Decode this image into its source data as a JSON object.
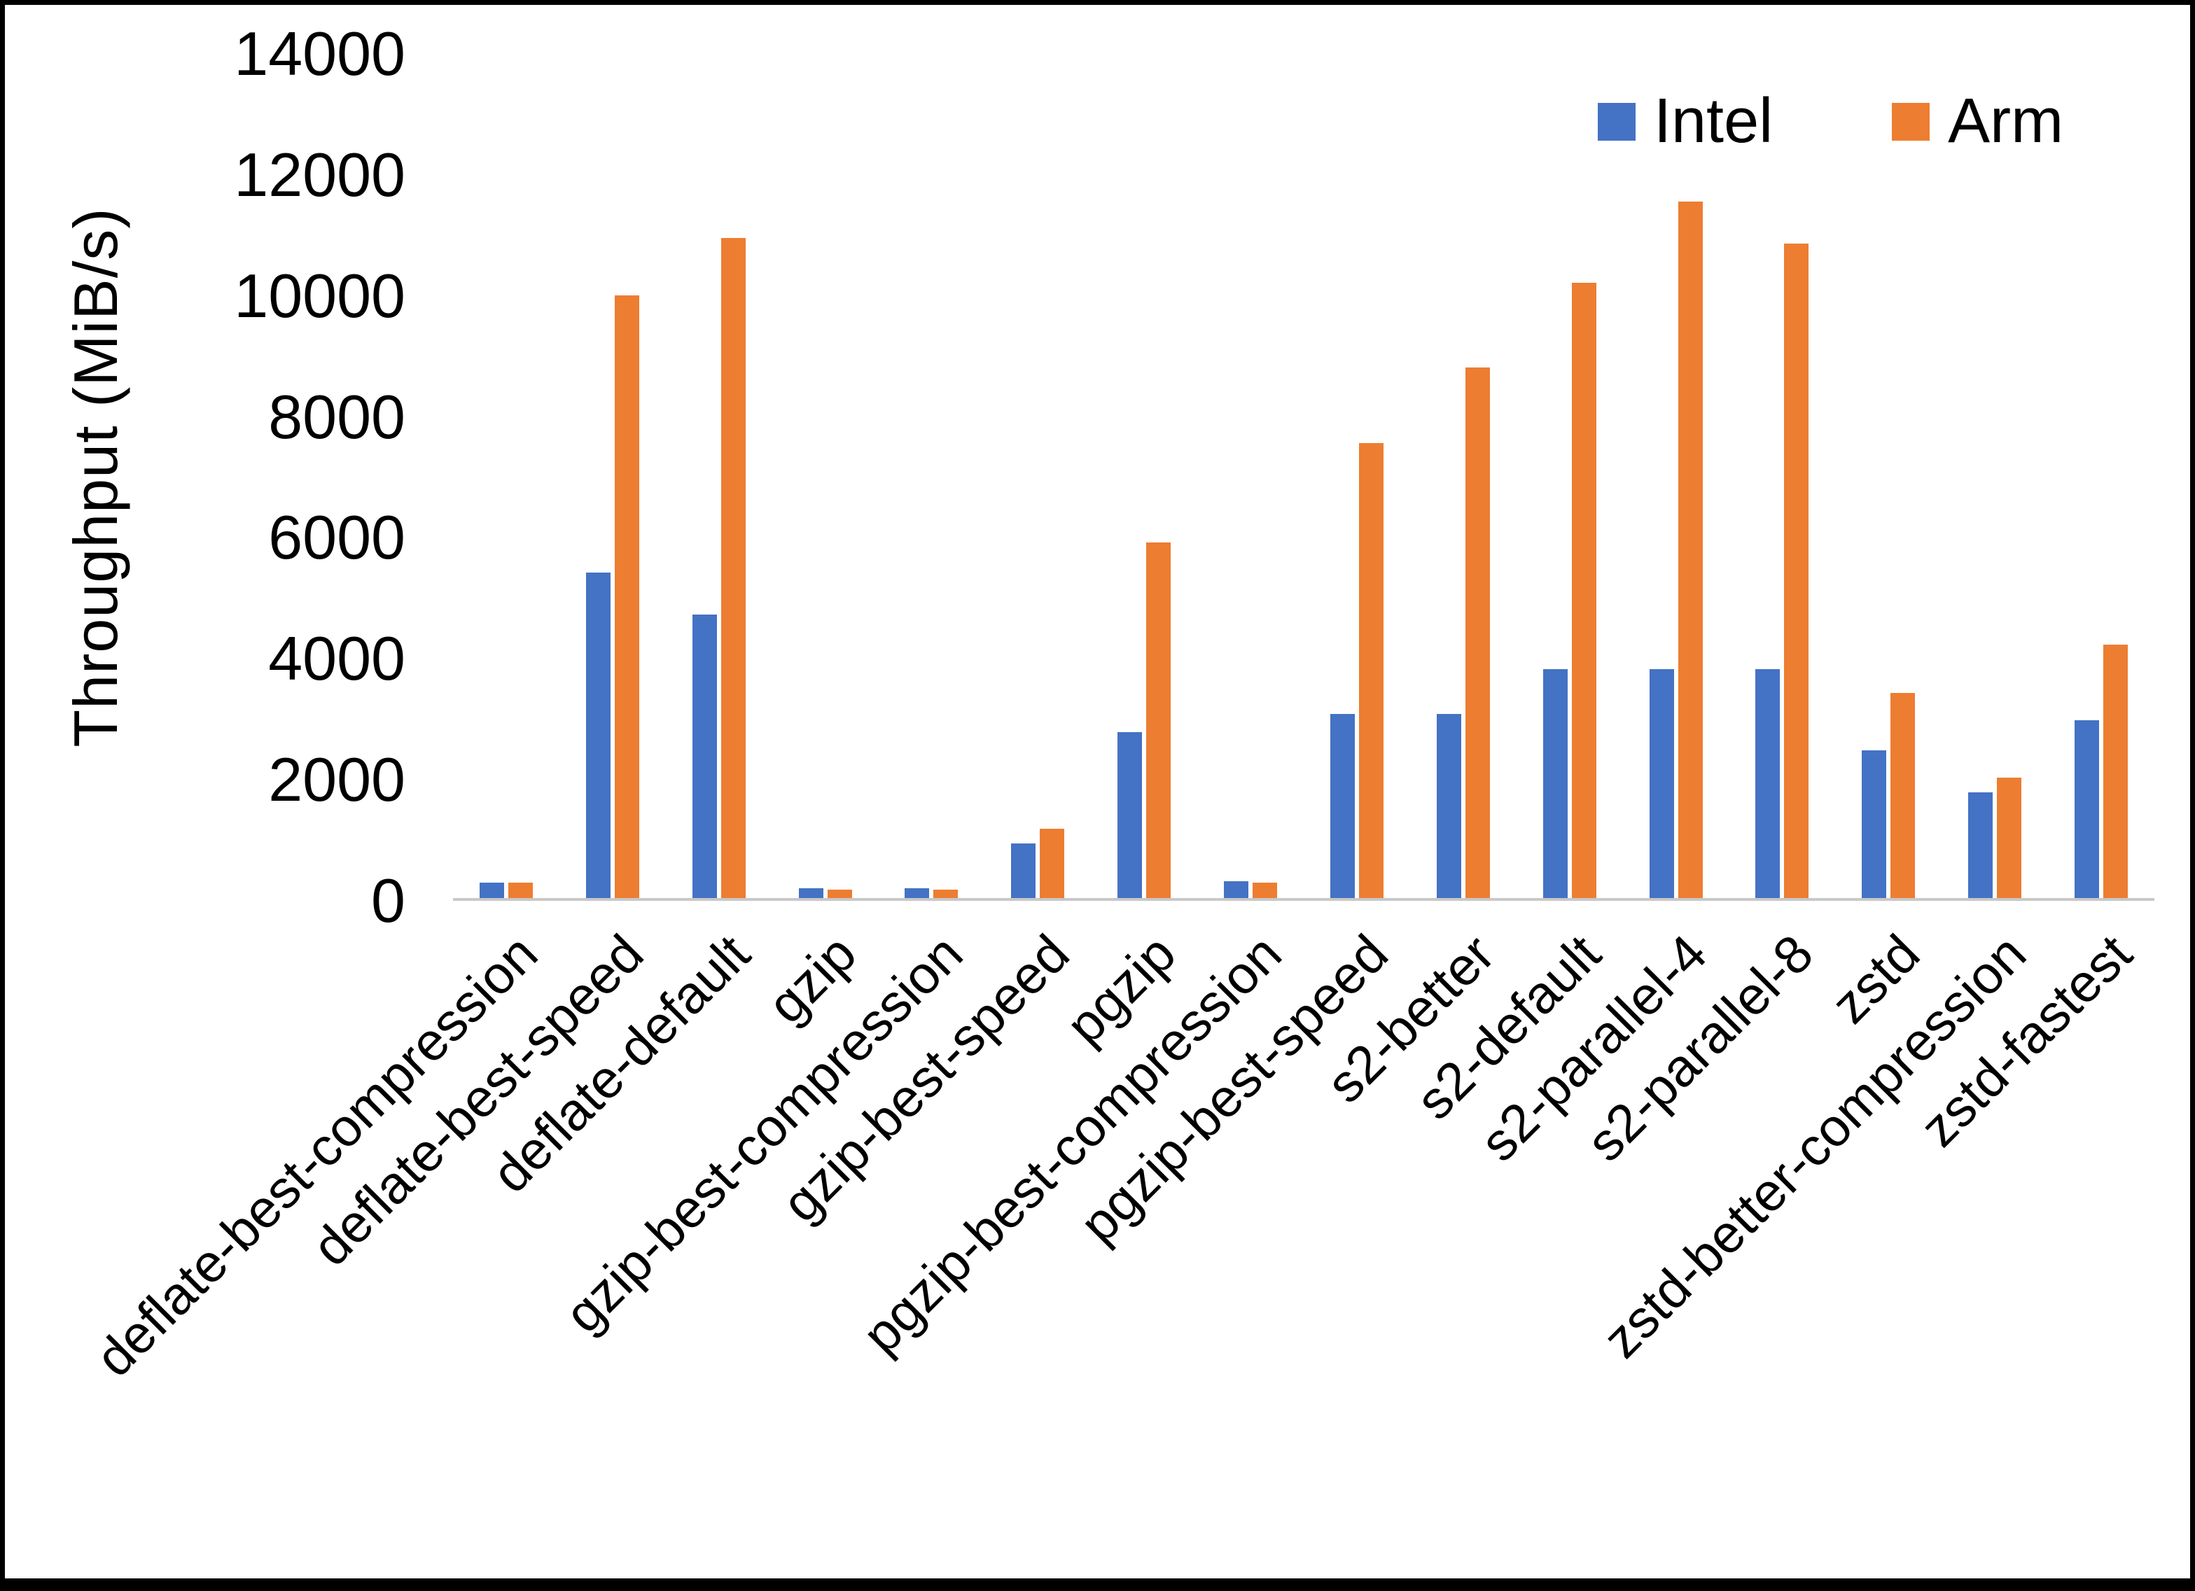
{
  "chart_data": {
    "type": "bar",
    "title": "",
    "xlabel": "",
    "ylabel": "Throughput (MiB/s)",
    "ylim": [
      0,
      14000
    ],
    "yticks": [
      0,
      2000,
      4000,
      6000,
      8000,
      10000,
      12000,
      14000
    ],
    "grid": false,
    "legend_position": "top-right",
    "categories": [
      "deflate-best-compression",
      "deflate-best-speed",
      "deflate-default",
      "gzip",
      "gzip-best-compression",
      "gzip-best-speed",
      "pgzip",
      "pgzip-best-compression",
      "pgzip-best-speed",
      "s2-better",
      "s2-default",
      "s2-parallel-4",
      "s2-parallel-8",
      "zstd",
      "zstd-better-compression",
      "zstd-fastest"
    ],
    "series": [
      {
        "name": "Intel",
        "color": "#4472C4",
        "values": [
          260,
          5400,
          4700,
          160,
          160,
          900,
          2750,
          280,
          3050,
          3050,
          3800,
          3800,
          3800,
          2450,
          1750,
          2950
        ]
      },
      {
        "name": "Arm",
        "color": "#ED7D31",
        "values": [
          250,
          10000,
          10950,
          140,
          140,
          1150,
          5900,
          260,
          7550,
          8800,
          10200,
          11550,
          10850,
          3400,
          2000,
          4200
        ]
      }
    ]
  }
}
